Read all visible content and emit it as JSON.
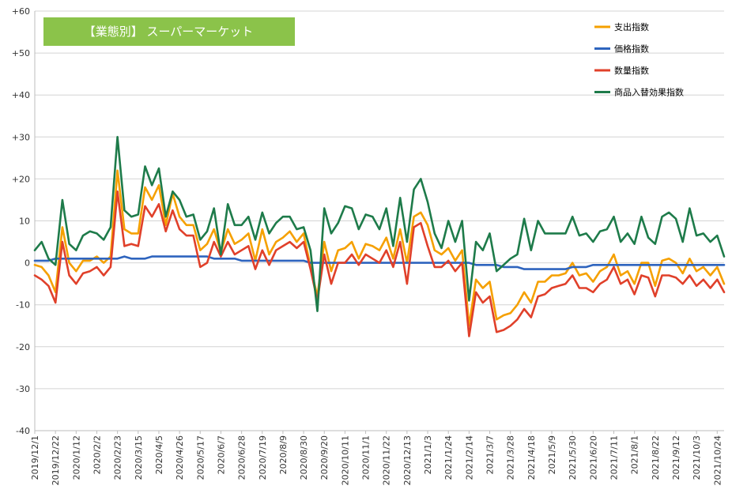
{
  "chart_data": {
    "type": "line",
    "title": "【業態別】 スーパーマーケット",
    "title_box_color": "#8BC34A",
    "ylim": [
      -40,
      60
    ],
    "ytick_values": [
      -40,
      -30,
      -20,
      -10,
      0,
      10,
      20,
      30,
      40,
      50,
      60
    ],
    "ytick_labels": [
      "-40",
      "-30",
      "-20",
      "-10",
      "0",
      "10",
      "+20",
      "+30",
      "+40",
      "+50",
      "+60"
    ],
    "grid": true,
    "legend_position": "top-right",
    "x_labels": [
      "2019/12/1",
      "2019/12/22",
      "2020/1/12",
      "2020/2/2",
      "2020/2/23",
      "2020/3/15",
      "2020/4/5",
      "2020/4/26",
      "2020/5/17",
      "2020/6/7",
      "2020/6/28",
      "2020/7/19",
      "2020/8/9",
      "2020/8/30",
      "2020/9/20",
      "2020/10/11",
      "2020/11/1",
      "2020/11/22",
      "2020/12/13",
      "2021/1/3",
      "2021/1/24",
      "2021/2/14",
      "2021/3/7",
      "2021/3/28",
      "2021/4/18",
      "2021/5/9",
      "2021/5/30",
      "2021/6/20",
      "2021/7/11",
      "2021/8/1",
      "2021/8/22",
      "2021/9/12",
      "2021/10/3",
      "2021/10/24"
    ],
    "points_per_label": 3,
    "series": [
      {
        "name": "支出指数",
        "color": "#F5A000",
        "values": [
          -0.5,
          -1,
          -3,
          -7,
          8.5,
          0,
          -2,
          0.5,
          0.5,
          1.5,
          0,
          1.5,
          22,
          8,
          7,
          7,
          18,
          15,
          18.5,
          9,
          16.5,
          11,
          9,
          9,
          3,
          4.5,
          8,
          2.5,
          8,
          4.5,
          5.5,
          7,
          0.5,
          8,
          2,
          5,
          6,
          7.5,
          5,
          7,
          -1,
          -8,
          5,
          -2,
          3,
          3.5,
          5,
          1,
          4.5,
          4,
          3,
          6,
          1,
          8,
          0,
          11,
          12,
          9,
          3,
          2,
          3.5,
          0.5,
          3,
          -15,
          -4,
          -6,
          -4.5,
          -13.5,
          -12.5,
          -12,
          -10,
          -7,
          -9.5,
          -4.5,
          -4.5,
          -3,
          -3,
          -2.5,
          0,
          -3,
          -2.5,
          -4.5,
          -2,
          -1,
          2,
          -3,
          -2,
          -5,
          0,
          0,
          -5.5,
          0.5,
          1,
          0,
          -2.5,
          1,
          -2,
          -1,
          -3,
          -1,
          -5
        ]
      },
      {
        "name": "価格指数",
        "color": "#2E64BE",
        "values": [
          0.5,
          0.5,
          0.5,
          1,
          1,
          1,
          1,
          1,
          1,
          1,
          1,
          1,
          1,
          1.5,
          1,
          1,
          1,
          1.5,
          1.5,
          1.5,
          1.5,
          1.5,
          1.5,
          1.5,
          1.5,
          1.5,
          1,
          1,
          1,
          1,
          0.5,
          0.5,
          0.5,
          0.5,
          0.5,
          0.5,
          0.5,
          0.5,
          0.5,
          0.5,
          0,
          0,
          0,
          0,
          0,
          0,
          0,
          0,
          0,
          0,
          0,
          0,
          0,
          0,
          0,
          0,
          0,
          0,
          0,
          0,
          0,
          0,
          0,
          0,
          -0.5,
          -0.5,
          -0.5,
          -0.5,
          -1,
          -1,
          -1,
          -1.5,
          -1.5,
          -1.5,
          -1.5,
          -1.5,
          -1.5,
          -1.5,
          -1,
          -1,
          -1,
          -0.5,
          -0.5,
          -0.5,
          -0.5,
          -0.5,
          -0.5,
          -0.5,
          -0.5,
          -0.5,
          -0.5,
          -0.5,
          -0.5,
          -0.5,
          -0.5,
          -0.5,
          -0.5,
          -0.5,
          -0.5,
          -0.5,
          -0.5
        ]
      },
      {
        "name": "数量指数",
        "color": "#E0402A",
        "values": [
          -3,
          -4,
          -5.5,
          -9.5,
          5,
          -3,
          -5,
          -2.5,
          -2,
          -1,
          -3,
          -1,
          17,
          4,
          4.5,
          4,
          13.5,
          11,
          14,
          7.5,
          12.5,
          8,
          6.5,
          6.5,
          -1,
          0,
          5,
          1.5,
          5,
          2,
          3,
          4,
          -1.5,
          3,
          -0.5,
          3,
          4,
          5,
          3.5,
          5,
          -1.5,
          -9,
          2,
          -5,
          0,
          0,
          2,
          -0.5,
          2,
          1,
          0,
          3,
          -1,
          5,
          -5,
          8.5,
          9.5,
          4,
          -1,
          -1,
          0.5,
          -2,
          0,
          -17.5,
          -7,
          -9.5,
          -8,
          -16.5,
          -16,
          -15,
          -13.5,
          -11,
          -13,
          -8,
          -7.5,
          -6,
          -5.5,
          -5,
          -3,
          -6,
          -6,
          -7,
          -5,
          -4,
          -1,
          -5,
          -4,
          -7.5,
          -3,
          -3.5,
          -8,
          -3,
          -3,
          -3.5,
          -5,
          -3,
          -5.5,
          -4,
          -6,
          -4,
          -7
        ]
      },
      {
        "name": "商品入替効果指数",
        "color": "#1E7B4A",
        "values": [
          3,
          5,
          1,
          -0.5,
          15,
          4.5,
          3,
          6.5,
          7.5,
          7,
          5.5,
          8.5,
          30,
          12.5,
          11,
          11.5,
          23,
          18.5,
          22.5,
          11,
          17,
          15,
          11,
          11.5,
          5.5,
          7.5,
          13,
          2,
          14,
          9,
          9,
          11,
          5.5,
          12,
          7,
          9.5,
          11,
          11,
          8,
          8.5,
          3,
          -11.5,
          13,
          7,
          9.5,
          13.5,
          13,
          8,
          11.5,
          11,
          8,
          13,
          4,
          15.5,
          5,
          17.5,
          20,
          14.5,
          7,
          3.5,
          10,
          5,
          10,
          -9,
          5,
          3,
          7,
          -2,
          -0.5,
          1,
          2,
          10.5,
          3,
          10,
          7,
          7,
          7,
          7,
          11,
          6.5,
          7,
          5,
          7.5,
          8,
          11,
          5,
          7,
          4.5,
          11,
          6,
          4.5,
          11,
          12,
          10.5,
          5,
          13,
          6.5,
          7,
          5,
          6.5,
          1.5
        ]
      }
    ]
  }
}
